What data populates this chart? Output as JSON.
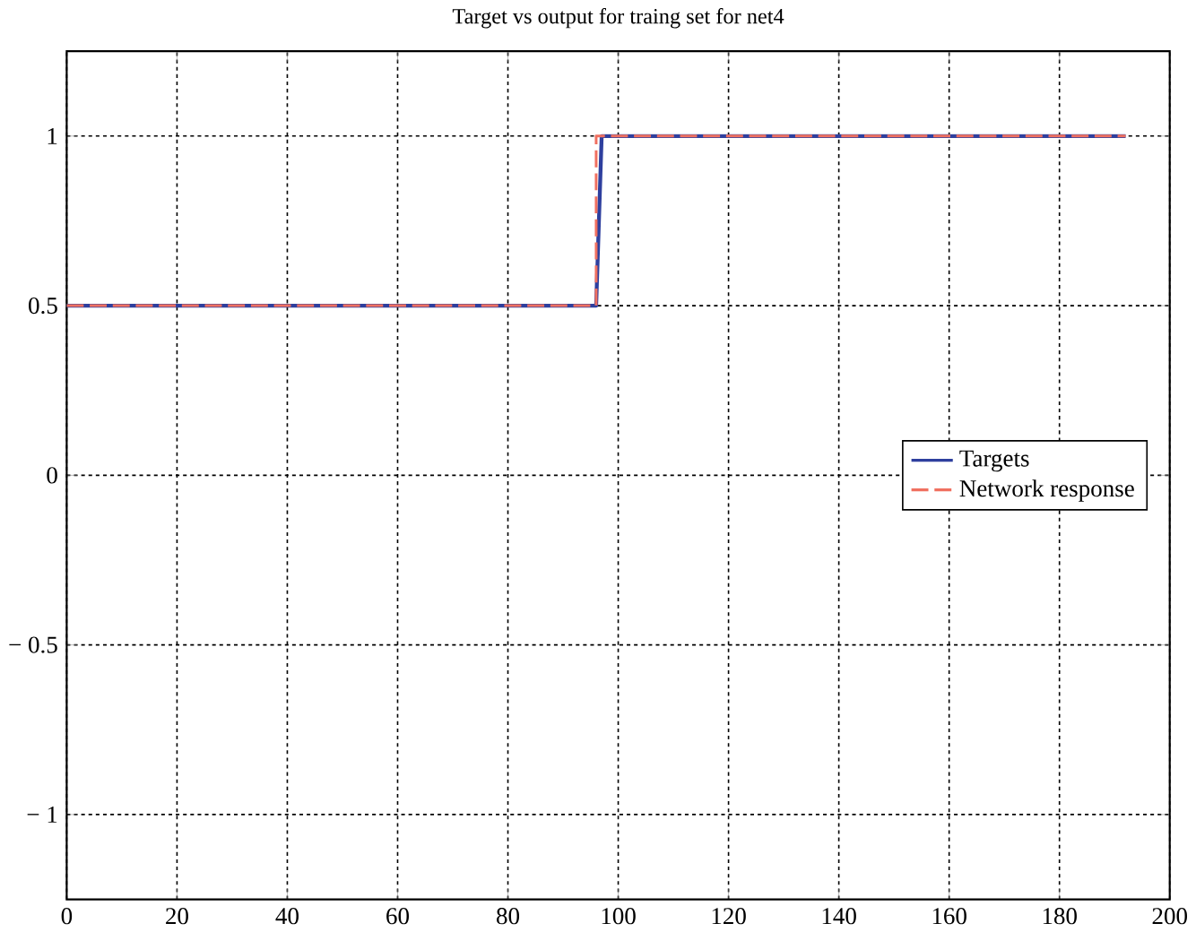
{
  "chart_data": {
    "type": "line",
    "title": "Target vs output for traing set for net4",
    "series": [
      {
        "name": "Targets",
        "color": "#2e3f9e",
        "line_style": "solid",
        "x": [
          0,
          96,
          97,
          192
        ],
        "values": [
          0.5,
          0.5,
          1,
          1
        ]
      },
      {
        "name": "Network response",
        "color": "#f07060",
        "line_style": "dashed",
        "x": [
          0,
          96,
          96,
          192
        ],
        "values": [
          0.5,
          0.5,
          1,
          1
        ]
      }
    ],
    "xlim": [
      0,
      200
    ],
    "xticks": [
      0,
      20,
      40,
      60,
      80,
      100,
      120,
      140,
      160,
      180,
      200
    ],
    "ylim": [
      -1.25,
      1.25
    ],
    "yticks": [
      {
        "value": -1,
        "label": "− 1"
      },
      {
        "value": -0.5,
        "label": "− 0.5"
      },
      0,
      0.5,
      1
    ],
    "grid": true,
    "legend": "right",
    "marker": "none"
  }
}
